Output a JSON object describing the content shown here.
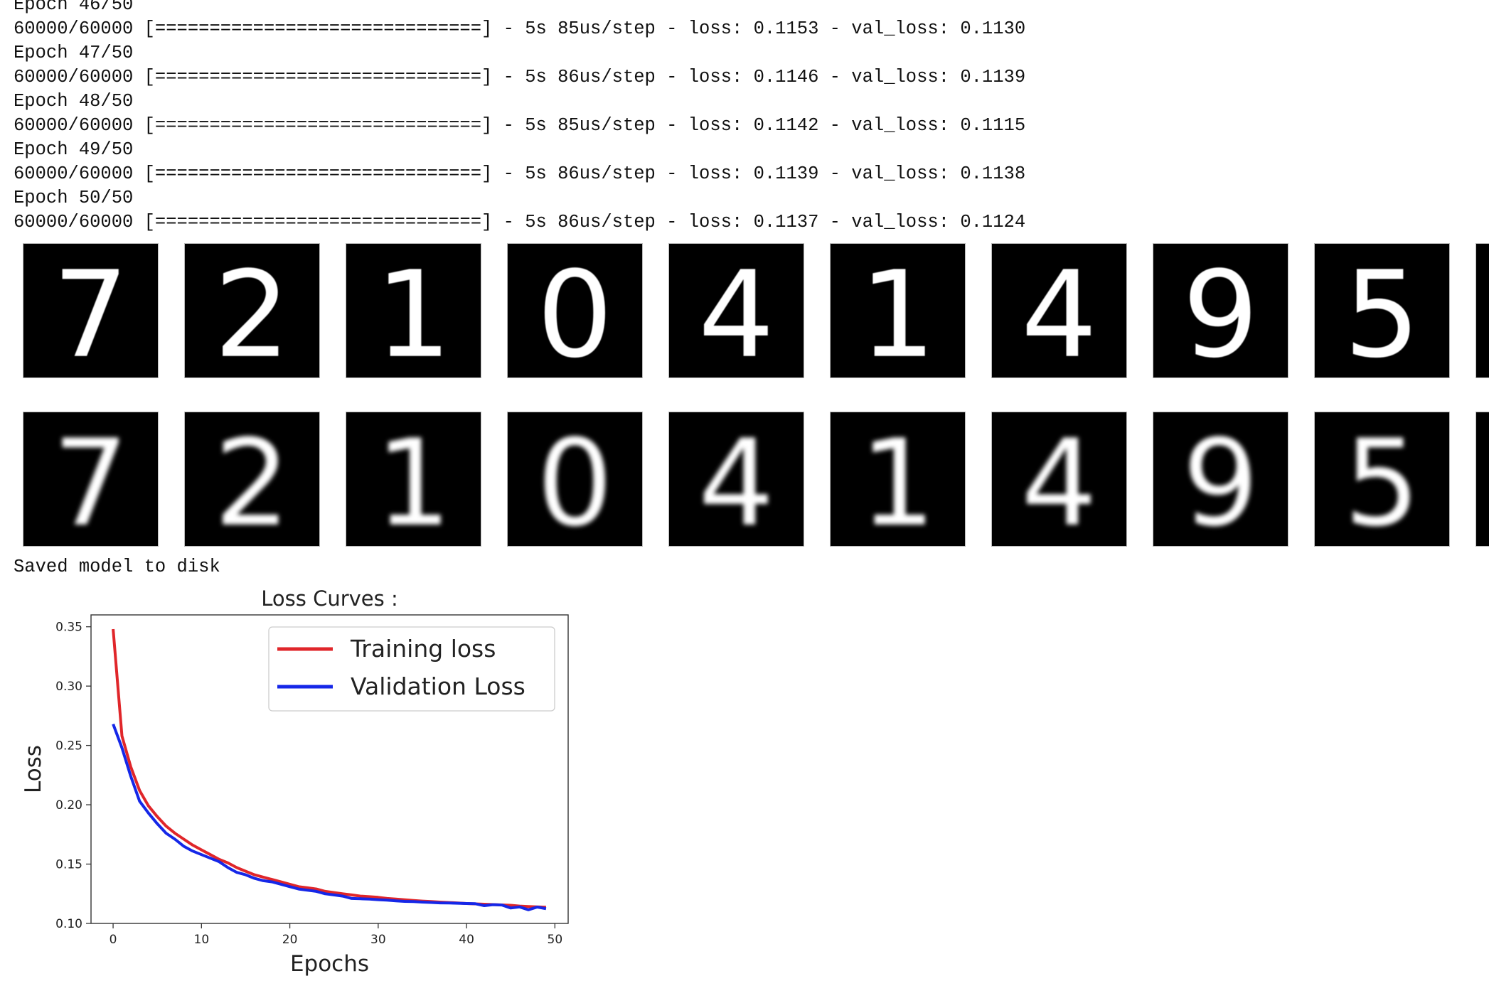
{
  "training_log": {
    "lines": [
      "Epoch 46/50",
      "60000/60000 [==============================] - 5s 85us/step - loss: 0.1153 - val_loss: 0.1130",
      "Epoch 47/50",
      "60000/60000 [==============================] - 5s 86us/step - loss: 0.1146 - val_loss: 0.1139",
      "Epoch 48/50",
      "60000/60000 [==============================] - 5s 85us/step - loss: 0.1142 - val_loss: 0.1115",
      "Epoch 49/50",
      "60000/60000 [==============================] - 5s 86us/step - loss: 0.1139 - val_loss: 0.1138",
      "Epoch 50/50",
      "60000/60000 [==============================] - 5s 86us/step - loss: 0.1137 - val_loss: 0.1124"
    ]
  },
  "digits": {
    "labels": [
      "7",
      "2",
      "1",
      "0",
      "4",
      "1",
      "4",
      "9",
      "5"
    ]
  },
  "status": {
    "message": "Saved model to disk"
  },
  "colors": {
    "training": "#e0262a",
    "validation": "#1527e8"
  },
  "chart_data": {
    "type": "line",
    "title": "Loss Curves :",
    "xlabel": "Epochs",
    "ylabel": "Loss",
    "xlim": [
      -2.5,
      51.5
    ],
    "ylim": [
      0.1,
      0.36
    ],
    "xticks": [
      0,
      10,
      20,
      30,
      40,
      50
    ],
    "yticks": [
      0.1,
      0.15,
      0.2,
      0.25,
      0.3,
      0.35
    ],
    "grid": false,
    "legend_position": "top-right",
    "x": [
      0,
      1,
      2,
      3,
      4,
      5,
      6,
      7,
      8,
      9,
      10,
      11,
      12,
      13,
      14,
      15,
      16,
      17,
      18,
      19,
      20,
      21,
      22,
      23,
      24,
      25,
      26,
      27,
      28,
      29,
      30,
      31,
      32,
      33,
      34,
      35,
      36,
      37,
      38,
      39,
      40,
      41,
      42,
      43,
      44,
      45,
      46,
      47,
      48,
      49
    ],
    "series": [
      {
        "name": "Training loss",
        "values": [
          0.348,
          0.258,
          0.232,
          0.212,
          0.199,
          0.19,
          0.182,
          0.176,
          0.171,
          0.166,
          0.162,
          0.158,
          0.154,
          0.151,
          0.147,
          0.144,
          0.141,
          0.139,
          0.137,
          0.135,
          0.133,
          0.131,
          0.13,
          0.129,
          0.127,
          0.126,
          0.125,
          0.124,
          0.123,
          0.1225,
          0.122,
          0.121,
          0.1205,
          0.1199,
          0.1193,
          0.1188,
          0.1184,
          0.118,
          0.1176,
          0.1172,
          0.1168,
          0.1165,
          0.1162,
          0.1159,
          0.1156,
          0.1153,
          0.1146,
          0.1142,
          0.1139,
          0.1137
        ]
      },
      {
        "name": "Validation Loss",
        "values": [
          0.268,
          0.248,
          0.224,
          0.203,
          0.193,
          0.184,
          0.176,
          0.171,
          0.165,
          0.161,
          0.158,
          0.155,
          0.152,
          0.147,
          0.143,
          0.141,
          0.138,
          0.136,
          0.135,
          0.133,
          0.131,
          0.129,
          0.128,
          0.127,
          0.125,
          0.124,
          0.123,
          0.121,
          0.1208,
          0.1205,
          0.12,
          0.1196,
          0.119,
          0.1186,
          0.1184,
          0.118,
          0.1177,
          0.1173,
          0.1172,
          0.117,
          0.1168,
          0.1166,
          0.115,
          0.1158,
          0.1155,
          0.113,
          0.1139,
          0.1115,
          0.1138,
          0.1124
        ]
      }
    ]
  }
}
